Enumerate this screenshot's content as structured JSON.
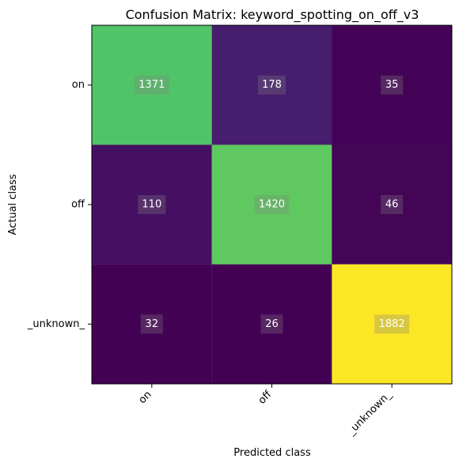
{
  "chart_data": {
    "type": "heatmap",
    "title": "Confusion Matrix: keyword_spotting_on_off_v3",
    "xlabel": "Predicted class",
    "ylabel": "Actual class",
    "x_categories": [
      "on",
      "off",
      "_unknown_"
    ],
    "y_categories": [
      "on",
      "off",
      "_unknown_"
    ],
    "values": [
      [
        1371,
        178,
        35
      ],
      [
        110,
        1420,
        46
      ],
      [
        32,
        26,
        1882
      ]
    ],
    "colormap": "viridis",
    "color_range": [
      26,
      1882
    ],
    "cell_label_color": "#ffffff",
    "x_tick_rotation_deg": -45
  }
}
